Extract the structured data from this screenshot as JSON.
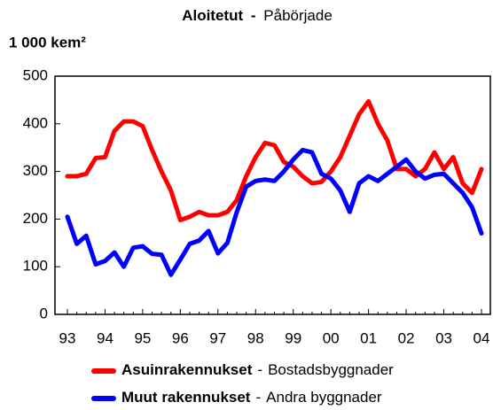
{
  "chart_data": {
    "type": "line",
    "title": "Aloitetut",
    "title_separator": "-",
    "title_translation": "Påbörjade",
    "y_label": "1 000 kem²",
    "categories": [
      "93",
      null,
      null,
      null,
      "94",
      null,
      null,
      null,
      "95",
      null,
      null,
      null,
      "96",
      null,
      null,
      null,
      "97",
      null,
      null,
      null,
      "98",
      null,
      null,
      null,
      "99",
      null,
      null,
      null,
      "00",
      null,
      null,
      null,
      "01",
      null,
      null,
      null,
      "02",
      null,
      null,
      null,
      "03",
      null,
      null,
      null,
      "04"
    ],
    "ylim": [
      0,
      500
    ],
    "yticks": [
      0,
      100,
      200,
      300,
      400,
      500
    ],
    "legend_separator": "-",
    "series": [
      {
        "name": "Asuinrakennukset",
        "translation": "Bostadsbyggnader",
        "color": "#ff0000",
        "values": [
          290,
          290,
          295,
          328,
          330,
          385,
          405,
          405,
          395,
          345,
          300,
          260,
          198,
          205,
          215,
          208,
          208,
          215,
          240,
          290,
          330,
          360,
          355,
          320,
          310,
          290,
          275,
          278,
          300,
          330,
          375,
          420,
          447,
          400,
          365,
          305,
          305,
          290,
          305,
          340,
          305,
          330,
          275,
          255,
          305
        ]
      },
      {
        "name": "Muut rakennukset",
        "translation": "Andra byggnader",
        "color": "#0000ff",
        "values": [
          205,
          148,
          165,
          105,
          112,
          130,
          100,
          140,
          143,
          127,
          125,
          83,
          115,
          148,
          155,
          175,
          128,
          150,
          215,
          268,
          280,
          283,
          280,
          300,
          325,
          345,
          340,
          295,
          285,
          260,
          215,
          275,
          290,
          280,
          295,
          310,
          325,
          300,
          285,
          293,
          295,
          275,
          255,
          225,
          170
        ]
      }
    ]
  }
}
